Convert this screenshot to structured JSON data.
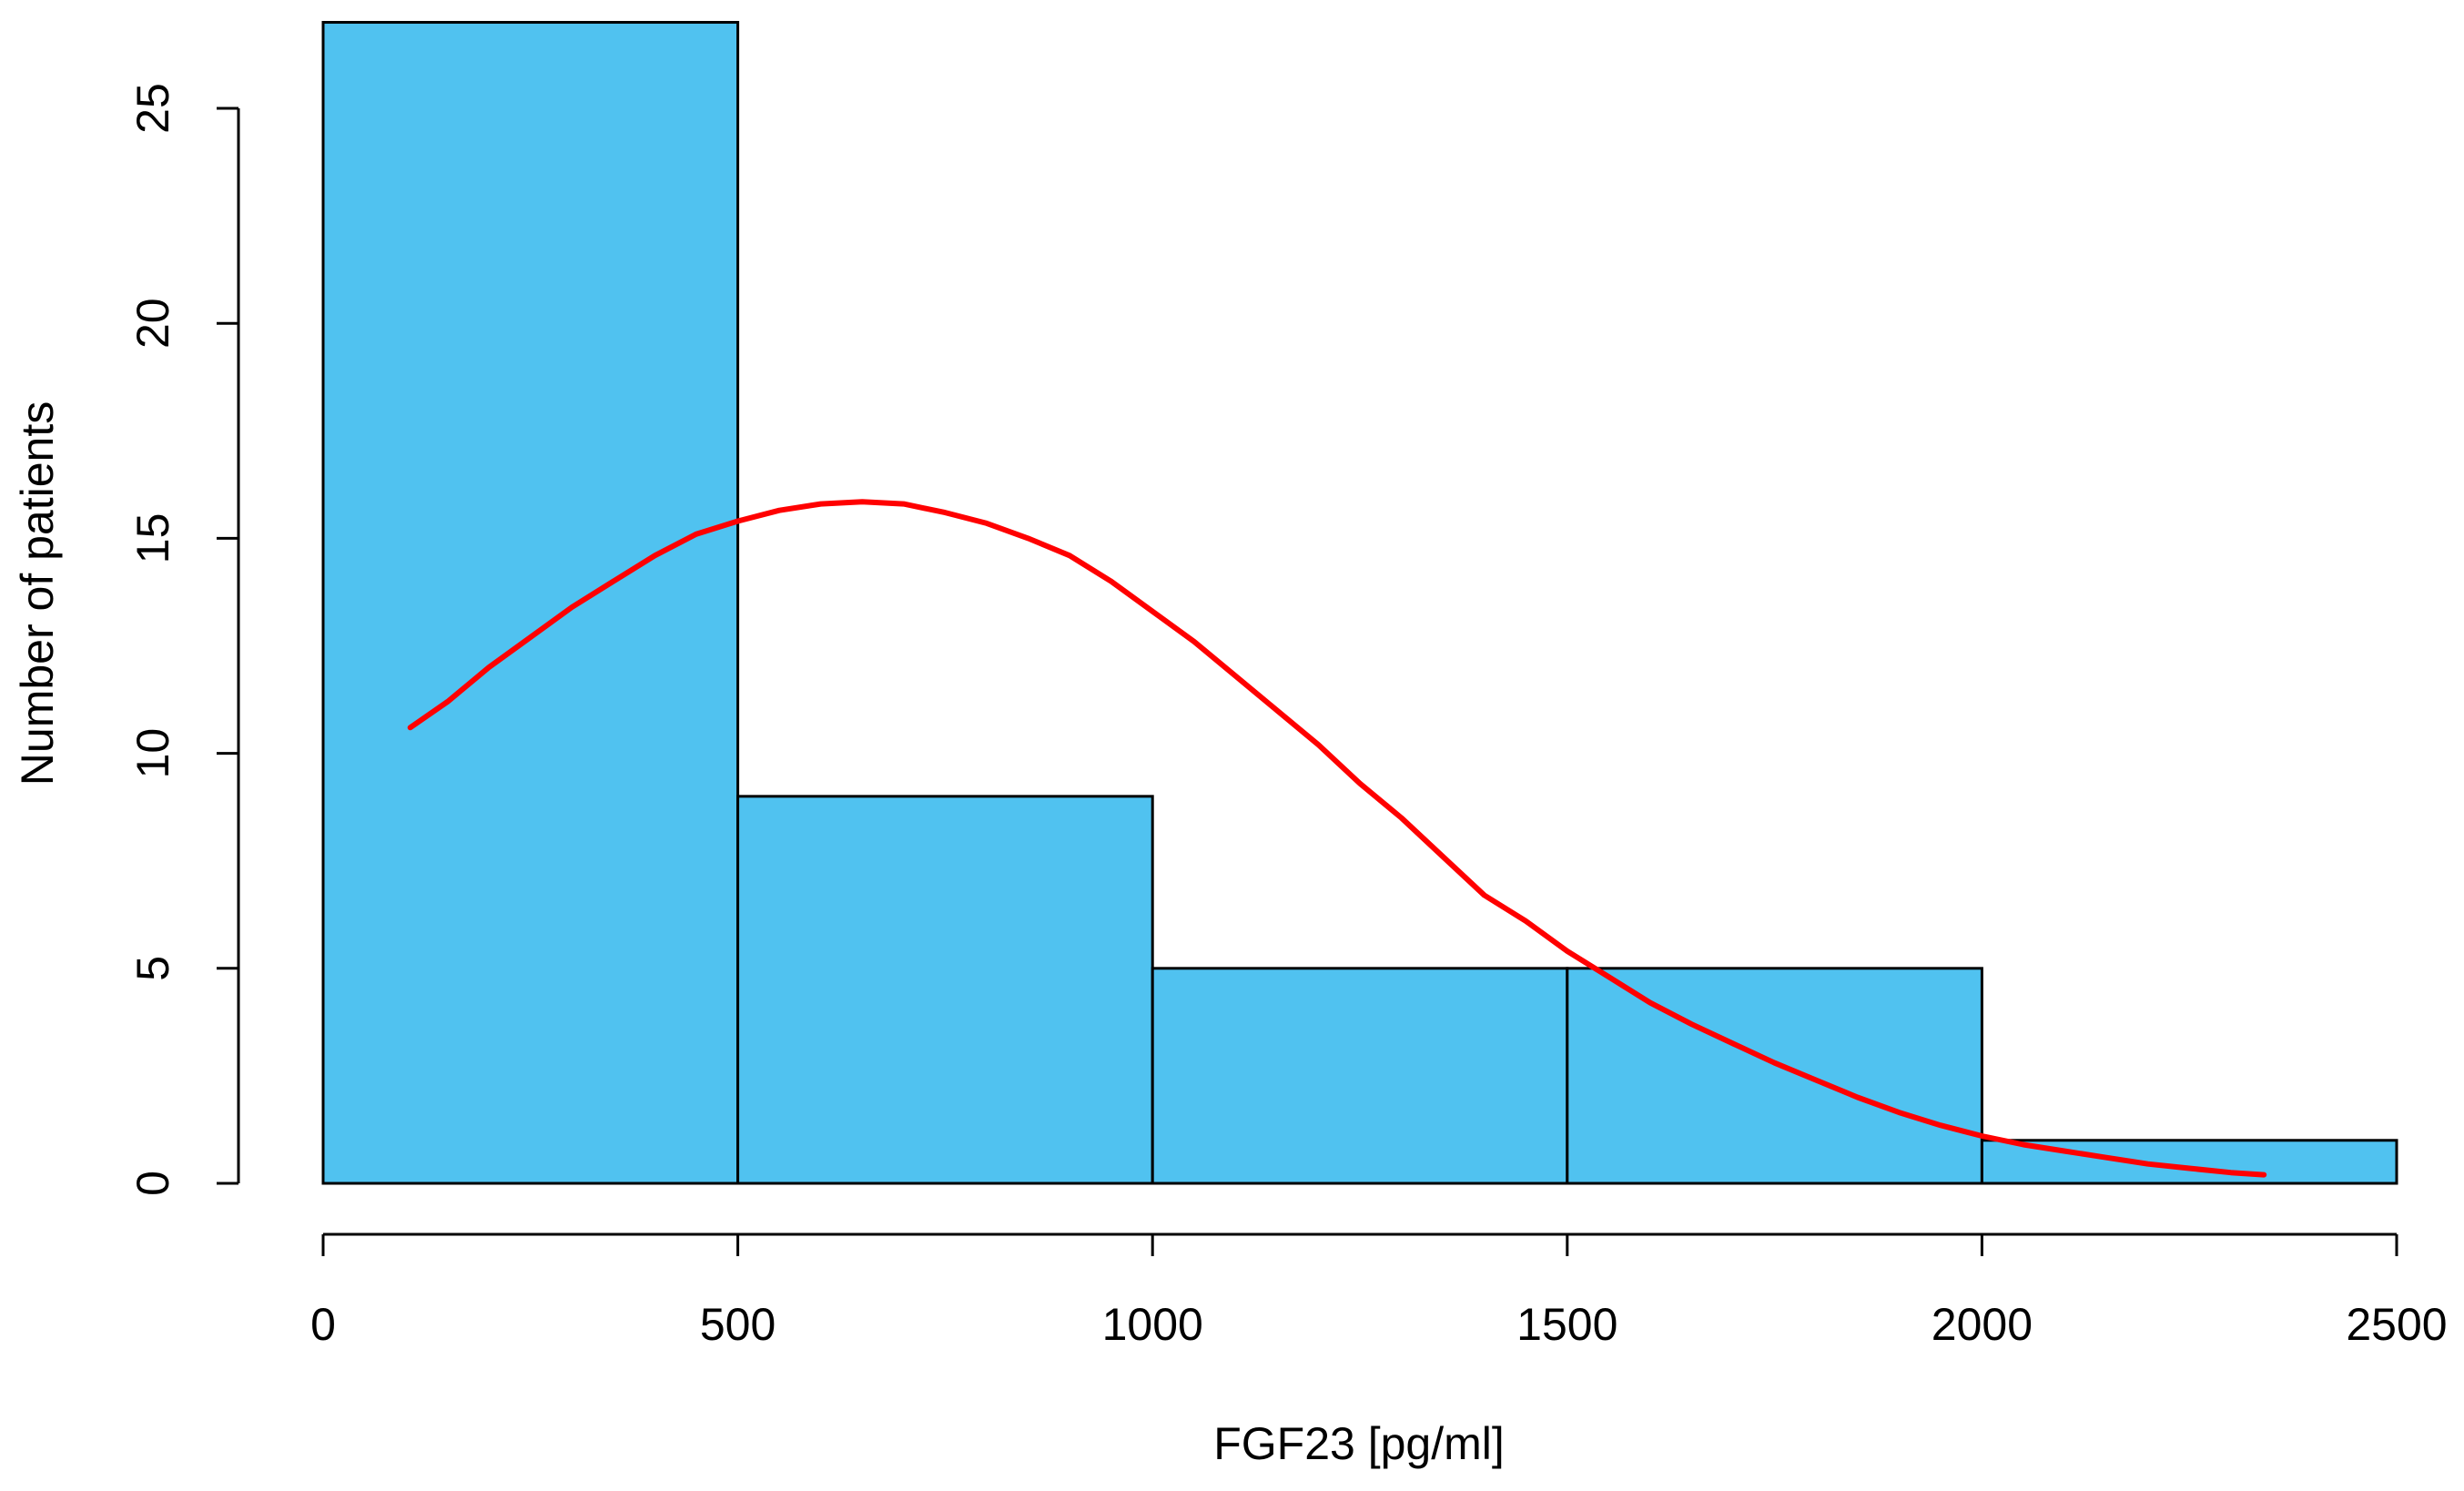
{
  "chart_data": {
    "type": "bar",
    "subtype": "histogram",
    "title": "",
    "xlabel": "FGF23 [pg/ml]",
    "ylabel": "Number of patients",
    "bins": [
      {
        "start": 0,
        "end": 500,
        "count": 27
      },
      {
        "start": 500,
        "end": 1000,
        "count": 9
      },
      {
        "start": 1000,
        "end": 1500,
        "count": 5
      },
      {
        "start": 1500,
        "end": 2000,
        "count": 5
      },
      {
        "start": 2000,
        "end": 2500,
        "count": 1
      }
    ],
    "xlim": [
      0,
      2500
    ],
    "ylim": [
      0,
      27
    ],
    "xticks": [
      0,
      500,
      1000,
      1500,
      2000,
      2500
    ],
    "yticks": [
      0,
      5,
      10,
      15,
      20,
      25
    ],
    "bar_color": "#50C2F0",
    "bar_edge_color": "#000000",
    "grid": false,
    "legend": "none",
    "overlay": {
      "type": "line",
      "color": "#FF0000",
      "points": [
        [
          105,
          10.6
        ],
        [
          150,
          11.2
        ],
        [
          200,
          12.0
        ],
        [
          250,
          12.7
        ],
        [
          300,
          13.4
        ],
        [
          350,
          14.0
        ],
        [
          400,
          14.6
        ],
        [
          450,
          15.1
        ],
        [
          500,
          15.4
        ],
        [
          550,
          15.65
        ],
        [
          600,
          15.8
        ],
        [
          650,
          15.85
        ],
        [
          700,
          15.8
        ],
        [
          750,
          15.6
        ],
        [
          800,
          15.35
        ],
        [
          850,
          15.0
        ],
        [
          900,
          14.6
        ],
        [
          950,
          14.0
        ],
        [
          1000,
          13.3
        ],
        [
          1050,
          12.6
        ],
        [
          1100,
          11.8
        ],
        [
          1150,
          11.0
        ],
        [
          1200,
          10.2
        ],
        [
          1250,
          9.3
        ],
        [
          1300,
          8.5
        ],
        [
          1350,
          7.6
        ],
        [
          1400,
          6.7
        ],
        [
          1450,
          6.1
        ],
        [
          1500,
          5.4
        ],
        [
          1550,
          4.8
        ],
        [
          1600,
          4.2
        ],
        [
          1650,
          3.7
        ],
        [
          1700,
          3.25
        ],
        [
          1750,
          2.8
        ],
        [
          1800,
          2.4
        ],
        [
          1850,
          2.0
        ],
        [
          1900,
          1.65
        ],
        [
          1950,
          1.35
        ],
        [
          2000,
          1.1
        ],
        [
          2050,
          0.9
        ],
        [
          2100,
          0.75
        ],
        [
          2150,
          0.6
        ],
        [
          2200,
          0.45
        ],
        [
          2250,
          0.35
        ],
        [
          2300,
          0.25
        ],
        [
          2340,
          0.2
        ]
      ]
    }
  }
}
